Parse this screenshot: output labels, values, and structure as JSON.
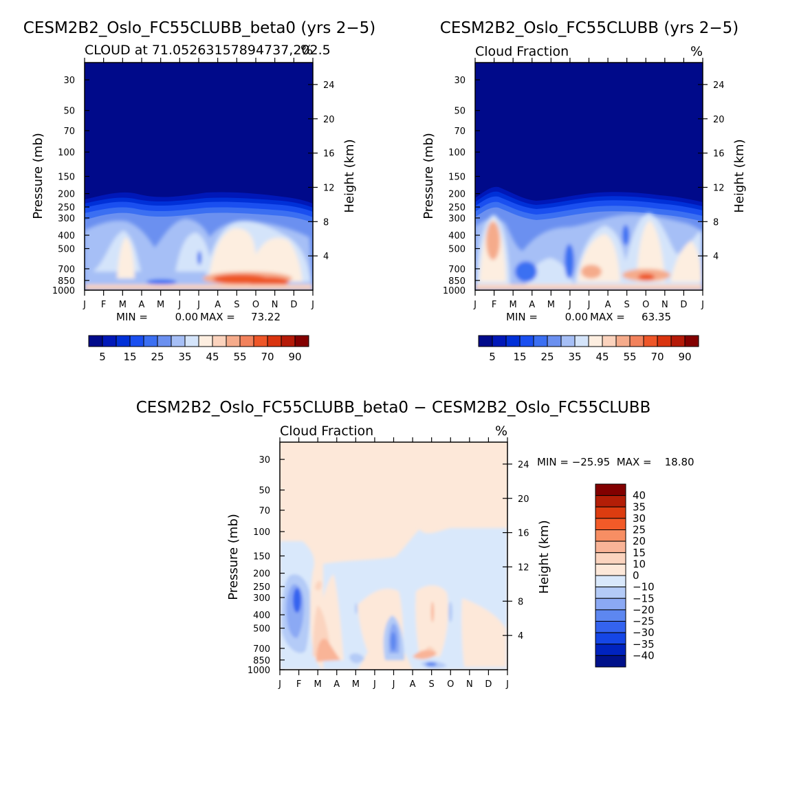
{
  "palette": {
    "seq": [
      "#000a8a",
      "#0018b8",
      "#0030d8",
      "#1a4ff0",
      "#3b6ff2",
      "#6b90f0",
      "#a6bff6",
      "#d4e4fa",
      "#fdeee0",
      "#fbd3bd",
      "#f5ab8b",
      "#f2825c",
      "#ee5628",
      "#d9340f",
      "#b51a08",
      "#830000"
    ],
    "diff": [
      "#00118a",
      "#0023bf",
      "#1546e6",
      "#3463ef",
      "#5d87f0",
      "#8ba9f4",
      "#b4cbf7",
      "#d9e8fb",
      "#fde8d9",
      "#fbd4bf",
      "#f9b497",
      "#f78e63",
      "#f25a28",
      "#dc3c10",
      "#b31e07",
      "#820000"
    ]
  },
  "chart_data": [
    {
      "type": "heatmap",
      "title": "CESM2B2_Oslo_FC55CLUBB_beta0 (yrs 2−5)",
      "subtitle_left": "CLOUD at 71.05263157894737,202.5",
      "subtitle_right": "%",
      "ylabel": "Pressure (mb)",
      "y2label": "Height (km)",
      "xticks": [
        "J",
        "F",
        "M",
        "A",
        "M",
        "J",
        "J",
        "A",
        "S",
        "O",
        "N",
        "D",
        "J"
      ],
      "pressure_ticks": [
        30,
        50,
        70,
        100,
        150,
        200,
        250,
        300,
        400,
        500,
        700,
        850,
        1000
      ],
      "height_ticks": [
        24,
        20,
        16,
        12,
        8,
        4
      ],
      "min_label": "MIN =",
      "min_value": "0.00",
      "max_label": "MAX =",
      "max_value": "73.22",
      "colorbar_levels": [
        5,
        10,
        15,
        20,
        25,
        30,
        35,
        40,
        45,
        50,
        55,
        60,
        70,
        80,
        90
      ],
      "colorbar_labels": [
        "5",
        "15",
        "25",
        "35",
        "45",
        "55",
        "70",
        "90"
      ],
      "min": 0.0,
      "max": 73.22
    },
    {
      "type": "heatmap",
      "title": "CESM2B2_Oslo_FC55CLUBB (yrs 2−5)",
      "subtitle_left": "Cloud Fraction",
      "subtitle_right": "%",
      "ylabel": "Pressure (mb)",
      "y2label": "Height (km)",
      "xticks": [
        "J",
        "F",
        "M",
        "A",
        "M",
        "J",
        "J",
        "A",
        "S",
        "O",
        "N",
        "D",
        "J"
      ],
      "pressure_ticks": [
        30,
        50,
        70,
        100,
        150,
        200,
        250,
        300,
        400,
        500,
        700,
        850,
        1000
      ],
      "height_ticks": [
        24,
        20,
        16,
        12,
        8,
        4
      ],
      "min_label": "MIN =",
      "min_value": "0.00",
      "max_label": "MAX =",
      "max_value": "63.35",
      "colorbar_levels": [
        5,
        10,
        15,
        20,
        25,
        30,
        35,
        40,
        45,
        50,
        55,
        60,
        70,
        80,
        90
      ],
      "colorbar_labels": [
        "5",
        "15",
        "25",
        "35",
        "45",
        "55",
        "70",
        "90"
      ],
      "min": 0.0,
      "max": 63.35
    },
    {
      "type": "heatmap",
      "title": "CESM2B2_Oslo_FC55CLUBB_beta0 − CESM2B2_Oslo_FC55CLUBB",
      "subtitle_left": "Cloud Fraction",
      "subtitle_right": "%",
      "ylabel": "Pressure (mb)",
      "y2label": "Height (km)",
      "xticks": [
        "J",
        "F",
        "M",
        "A",
        "M",
        "J",
        "J",
        "A",
        "S",
        "O",
        "N",
        "D",
        "J"
      ],
      "pressure_ticks": [
        30,
        50,
        70,
        100,
        150,
        200,
        250,
        300,
        400,
        500,
        700,
        850,
        1000
      ],
      "height_ticks": [
        24,
        20,
        16,
        12,
        8,
        4
      ],
      "minmax_text": "MIN = −25.95  MAX =    18.80",
      "min": -25.95,
      "max": 18.8,
      "colorbar_levels": [
        -40,
        -35,
        -30,
        -25,
        -20,
        -15,
        -10,
        0,
        10,
        15,
        20,
        25,
        30,
        35,
        40
      ],
      "colorbar_labels": [
        "40",
        "35",
        "30",
        "25",
        "20",
        "15",
        "10",
        "0",
        "−10",
        "−15",
        "−20",
        "−25",
        "−30",
        "−35",
        "−40"
      ]
    }
  ]
}
